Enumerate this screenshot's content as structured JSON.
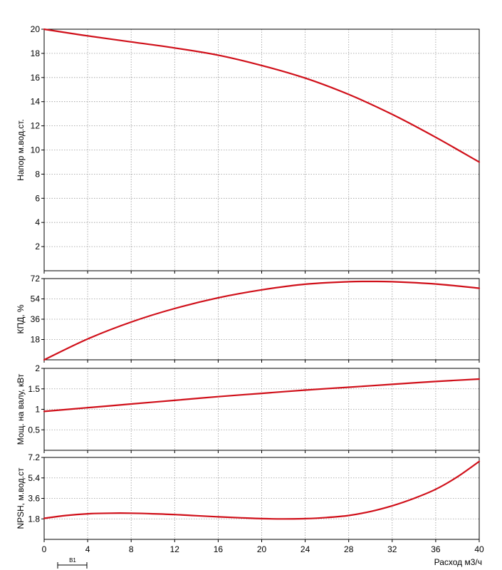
{
  "chart_data": [
    {
      "type": "line",
      "panel": "head",
      "ylabel": "Напор м.вод.ст.",
      "xlim": [
        0,
        40
      ],
      "ylim": [
        0,
        20
      ],
      "yticks": [
        "2",
        "4",
        "6",
        "8",
        "10",
        "12",
        "14",
        "16",
        "18",
        "20"
      ],
      "grid": true,
      "series": [
        {
          "x": [
            0,
            4,
            8,
            12,
            16,
            20,
            24,
            28,
            32,
            36,
            40
          ],
          "y": [
            20,
            19.45,
            18.95,
            18.45,
            17.85,
            17.0,
            15.95,
            14.6,
            12.95,
            11.05,
            9.0
          ],
          "color": "#d0101a"
        }
      ]
    },
    {
      "type": "line",
      "panel": "efficiency",
      "ylabel": "КПД, %",
      "xlim": [
        0,
        40
      ],
      "ylim": [
        0,
        72
      ],
      "yticks": [
        "18",
        "36",
        "54",
        "72"
      ],
      "grid": true,
      "series": [
        {
          "x": [
            0,
            4,
            8,
            12,
            16,
            20,
            24,
            28,
            30,
            32,
            36,
            40
          ],
          "y": [
            0,
            18.5,
            33.5,
            45.5,
            55,
            62,
            67,
            69.2,
            69.5,
            69.2,
            67.2,
            63.5
          ],
          "color": "#d0101a"
        }
      ]
    },
    {
      "type": "line",
      "panel": "power",
      "ylabel": "Мощ. на валу, кВт",
      "xlim": [
        0,
        40
      ],
      "ylim": [
        0,
        2
      ],
      "yticks": [
        "0.5",
        "1",
        "1.5",
        "2"
      ],
      "grid": true,
      "series": [
        {
          "x": [
            0,
            4,
            8,
            12,
            16,
            20,
            24,
            28,
            32,
            36,
            40
          ],
          "y": [
            0.95,
            1.04,
            1.13,
            1.22,
            1.31,
            1.39,
            1.47,
            1.54,
            1.61,
            1.68,
            1.74
          ],
          "color": "#d0101a"
        }
      ]
    },
    {
      "type": "line",
      "panel": "npsh",
      "ylabel": "NPSH, м.вод.ст",
      "xlabel": "Расход м3/ч",
      "xlim": [
        0,
        40
      ],
      "ylim": [
        0,
        7.2
      ],
      "yticks": [
        "1.8",
        "3.6",
        "5.4",
        "7.2"
      ],
      "xticks": [
        "0",
        "4",
        "8",
        "12",
        "16",
        "20",
        "24",
        "28",
        "32",
        "36",
        "40"
      ],
      "grid": true,
      "series": [
        {
          "x": [
            0,
            2,
            4,
            6,
            8,
            10,
            12,
            14,
            16,
            18,
            20,
            22,
            24,
            26,
            28,
            30,
            32,
            34,
            36,
            38,
            40
          ],
          "y": [
            1.85,
            2.1,
            2.25,
            2.3,
            2.3,
            2.25,
            2.18,
            2.08,
            1.98,
            1.9,
            1.82,
            1.8,
            1.82,
            1.92,
            2.1,
            2.45,
            2.95,
            3.6,
            4.4,
            5.5,
            6.85
          ],
          "color": "#d0101a"
        }
      ]
    }
  ],
  "scale_marker": {
    "label": "B1"
  }
}
